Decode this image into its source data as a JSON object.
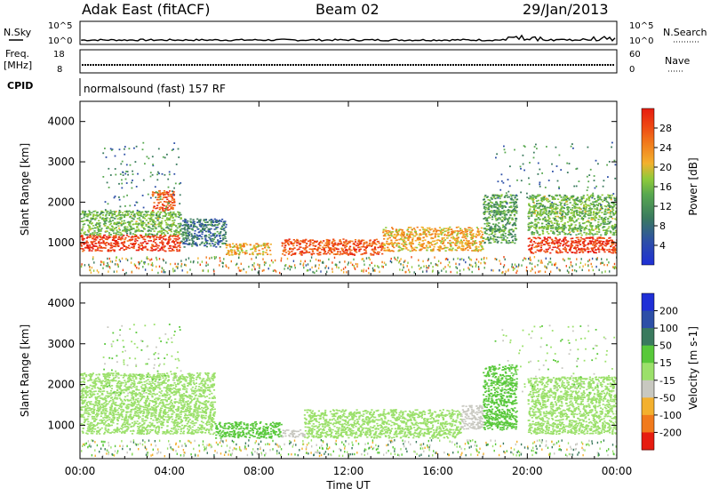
{
  "header": {
    "station": "Adak East (fitACF)",
    "beam": "Beam 02",
    "date": "29/Jan/2013"
  },
  "noise_panel": {
    "left_label": "N.Sky",
    "right_label": "N.Search",
    "tick_top": "10^5",
    "tick_bottom": "10^0",
    "right_tick_top": "10^5",
    "right_tick_bottom": "10^0"
  },
  "freq_panel": {
    "left_label_1": "Freq.",
    "left_label_2": "[MHz]",
    "right_label": "Nave",
    "tick_top": "18",
    "tick_bottom": "8",
    "right_tick_top": "60",
    "right_tick_bottom": "0"
  },
  "cpid_panel": {
    "left_label": "CPID",
    "text": "normalsound (fast) 157 RF"
  },
  "x_axis": {
    "label": "Time UT",
    "ticks": [
      "00:00",
      "04:00",
      "08:00",
      "12:00",
      "16:00",
      "20:00",
      "00:00"
    ]
  },
  "power_panel": {
    "ylabel": "Slant Range [km]",
    "yticks": [
      "1000",
      "2000",
      "3000",
      "4000"
    ],
    "colorbar_label": "Power [dB]",
    "colorbar_ticks": [
      "4",
      "8",
      "12",
      "16",
      "20",
      "24",
      "28"
    ],
    "colors": [
      "#1f2fd6",
      "#2d4fa7",
      "#3a7a5e",
      "#58a84f",
      "#8fca3a",
      "#f3b02e",
      "#f17a1c",
      "#ee4a14",
      "#e61c10"
    ]
  },
  "velocity_panel": {
    "ylabel": "Slant Range [km]",
    "yticks": [
      "1000",
      "2000",
      "3000",
      "4000"
    ],
    "colorbar_label": "Velocity [m s-1]",
    "colorbar_ticks": [
      "200",
      "100",
      "50",
      "15",
      "-15",
      "-50",
      "-100",
      "-200"
    ],
    "colors": [
      "#1f2fd6",
      "#2d4fa7",
      "#3a7a5e",
      "#58c83a",
      "#9be06a",
      "#c8c8c0",
      "#f3b02e",
      "#f17a1c",
      "#e61c10"
    ]
  },
  "chart_data": [
    {
      "type": "heatmap",
      "name": "Power",
      "xlabel": "Time UT",
      "ylabel": "Slant Range [km]",
      "xlim": [
        0,
        24
      ],
      "ylim": [
        180,
        4500
      ],
      "colorbar": {
        "label": "Power [dB]",
        "ticks": [
          4,
          8,
          12,
          16,
          20,
          24,
          28
        ]
      },
      "bands": [
        {
          "x": [
            0,
            4.5
          ],
          "range": [
            800,
            1200
          ],
          "value": 28
        },
        {
          "x": [
            0,
            4.5
          ],
          "range": [
            1200,
            1800
          ],
          "value": 14
        },
        {
          "x": [
            3.2,
            4.2
          ],
          "range": [
            1800,
            2300
          ],
          "value": 26
        },
        {
          "x": [
            4.5,
            6.5
          ],
          "range": [
            900,
            1600
          ],
          "value": 8
        },
        {
          "x": [
            6.5,
            8.5
          ],
          "range": [
            700,
            1000
          ],
          "value": 20
        },
        {
          "x": [
            9,
            13.5
          ],
          "range": [
            700,
            1100
          ],
          "value": 26
        },
        {
          "x": [
            13.5,
            18
          ],
          "range": [
            800,
            1400
          ],
          "value": 20
        },
        {
          "x": [
            18,
            19.5
          ],
          "range": [
            1000,
            2200
          ],
          "value": 12
        },
        {
          "x": [
            20,
            24
          ],
          "range": [
            750,
            1150
          ],
          "value": 28
        },
        {
          "x": [
            20,
            24
          ],
          "range": [
            1200,
            2200
          ],
          "value": 14
        }
      ]
    },
    {
      "type": "heatmap",
      "name": "Velocity",
      "xlabel": "Time UT",
      "ylabel": "Slant Range [km]",
      "xlim": [
        0,
        24
      ],
      "ylim": [
        180,
        4500
      ],
      "colorbar": {
        "label": "Velocity [m s-1]",
        "ticks": [
          200,
          100,
          50,
          15,
          -15,
          -50,
          -100,
          -200
        ]
      },
      "bands": [
        {
          "x": [
            0,
            6
          ],
          "range": [
            800,
            2300
          ],
          "value": 0
        },
        {
          "x": [
            6,
            9
          ],
          "range": [
            700,
            1100
          ],
          "value": 30
        },
        {
          "x": [
            9,
            10
          ],
          "range": [
            700,
            900
          ],
          "value": -40
        },
        {
          "x": [
            10,
            17
          ],
          "range": [
            700,
            1400
          ],
          "value": 0
        },
        {
          "x": [
            17,
            18
          ],
          "range": [
            900,
            1500
          ],
          "value": -40
        },
        {
          "x": [
            18,
            19.5
          ],
          "range": [
            900,
            2500
          ],
          "value": 30
        },
        {
          "x": [
            20,
            24
          ],
          "range": [
            800,
            2200
          ],
          "value": 0
        }
      ]
    }
  ]
}
